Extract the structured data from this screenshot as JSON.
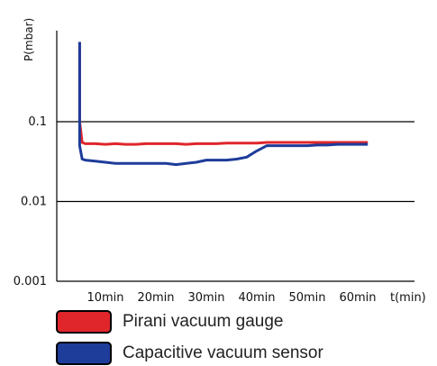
{
  "chart_data": {
    "type": "line",
    "ylabel": "P(mbar)",
    "xlabel": "t(min)",
    "y_scale": "log",
    "ylim": [
      0.001,
      1
    ],
    "y_ticks": [
      {
        "value": 0.001,
        "label": "0.001"
      },
      {
        "value": 0.01,
        "label": "0.01"
      },
      {
        "value": 0.1,
        "label": "0.1"
      }
    ],
    "grid_y": [
      0.01,
      0.1
    ],
    "xlim": [
      4,
      62
    ],
    "x_ticks": [
      {
        "value": 10,
        "label": "10min"
      },
      {
        "value": 20,
        "label": "20min"
      },
      {
        "value": 30,
        "label": "30min"
      },
      {
        "value": 40,
        "label": "40min"
      },
      {
        "value": 50,
        "label": "50min"
      },
      {
        "value": 60,
        "label": "60min"
      }
    ],
    "series": [
      {
        "name": "Pirani vacuum gauge",
        "color": "#e0262b",
        "x": [
          4.9,
          4.9,
          5.4,
          6,
          8,
          10,
          12,
          14,
          16,
          18,
          20,
          22,
          24,
          26,
          28,
          30,
          32,
          34,
          36,
          38,
          40,
          42,
          44,
          46,
          48,
          50,
          52,
          54,
          56,
          58,
          60,
          62
        ],
        "y": [
          1.0,
          0.1,
          0.055,
          0.053,
          0.053,
          0.052,
          0.053,
          0.052,
          0.052,
          0.053,
          0.053,
          0.053,
          0.053,
          0.052,
          0.053,
          0.053,
          0.053,
          0.054,
          0.054,
          0.054,
          0.054,
          0.055,
          0.055,
          0.055,
          0.055,
          0.055,
          0.055,
          0.055,
          0.055,
          0.055,
          0.055,
          0.055
        ]
      },
      {
        "name": "Capacitive vacuum sensor",
        "color": "#1e3c9a",
        "x": [
          4.9,
          4.9,
          5.4,
          6,
          8,
          10,
          12,
          14,
          16,
          18,
          20,
          22,
          24,
          26,
          28,
          30,
          32,
          34,
          36,
          38,
          40,
          42,
          44,
          46,
          48,
          50,
          52,
          54,
          56,
          58,
          60,
          62
        ],
        "y": [
          1.0,
          0.05,
          0.034,
          0.033,
          0.032,
          0.031,
          0.03,
          0.03,
          0.03,
          0.03,
          0.03,
          0.03,
          0.029,
          0.03,
          0.031,
          0.033,
          0.033,
          0.033,
          0.034,
          0.036,
          0.043,
          0.05,
          0.05,
          0.05,
          0.05,
          0.05,
          0.051,
          0.051,
          0.052,
          0.052,
          0.052,
          0.052
        ]
      }
    ],
    "legend": [
      {
        "label": "Pirani vacuum gauge",
        "color": "#e0262b"
      },
      {
        "label": "Capacitive vacuum sensor",
        "color": "#1e3c9a"
      }
    ]
  }
}
